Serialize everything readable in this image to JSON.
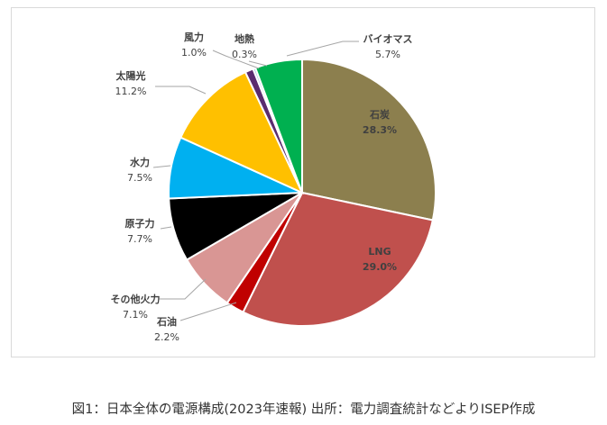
{
  "chart_data": {
    "type": "pie",
    "start": "top",
    "direction": "clockwise",
    "slices": [
      {
        "label": "石炭",
        "value": 28.3,
        "display": "28.3%",
        "color": "#8c7f4e"
      },
      {
        "label": "LNG",
        "value": 29.0,
        "display": "29.0%",
        "color": "#c0504d"
      },
      {
        "label": "石油",
        "value": 2.2,
        "display": "2.2%",
        "color": "#c00000"
      },
      {
        "label": "その他火力",
        "value": 7.1,
        "display": "7.1%",
        "color": "#d99694"
      },
      {
        "label": "原子力",
        "value": 7.7,
        "display": "7.7%",
        "color": "#000000"
      },
      {
        "label": "水力",
        "value": 7.5,
        "display": "7.5%",
        "color": "#00b0f0"
      },
      {
        "label": "太陽光",
        "value": 11.2,
        "display": "11.2%",
        "color": "#ffc000"
      },
      {
        "label": "風力",
        "value": 1.0,
        "display": "1.0%",
        "color": "#5b2c6f"
      },
      {
        "label": "地熱",
        "value": 0.3,
        "display": "0.3%",
        "color": "#9dc3e6"
      },
      {
        "label": "バイオマス",
        "value": 5.7,
        "display": "5.7%",
        "color": "#00b050"
      }
    ]
  },
  "caption": "図1：日本全体の電源構成(2023年速報) 出所：電力調査統計などよりISEP作成"
}
